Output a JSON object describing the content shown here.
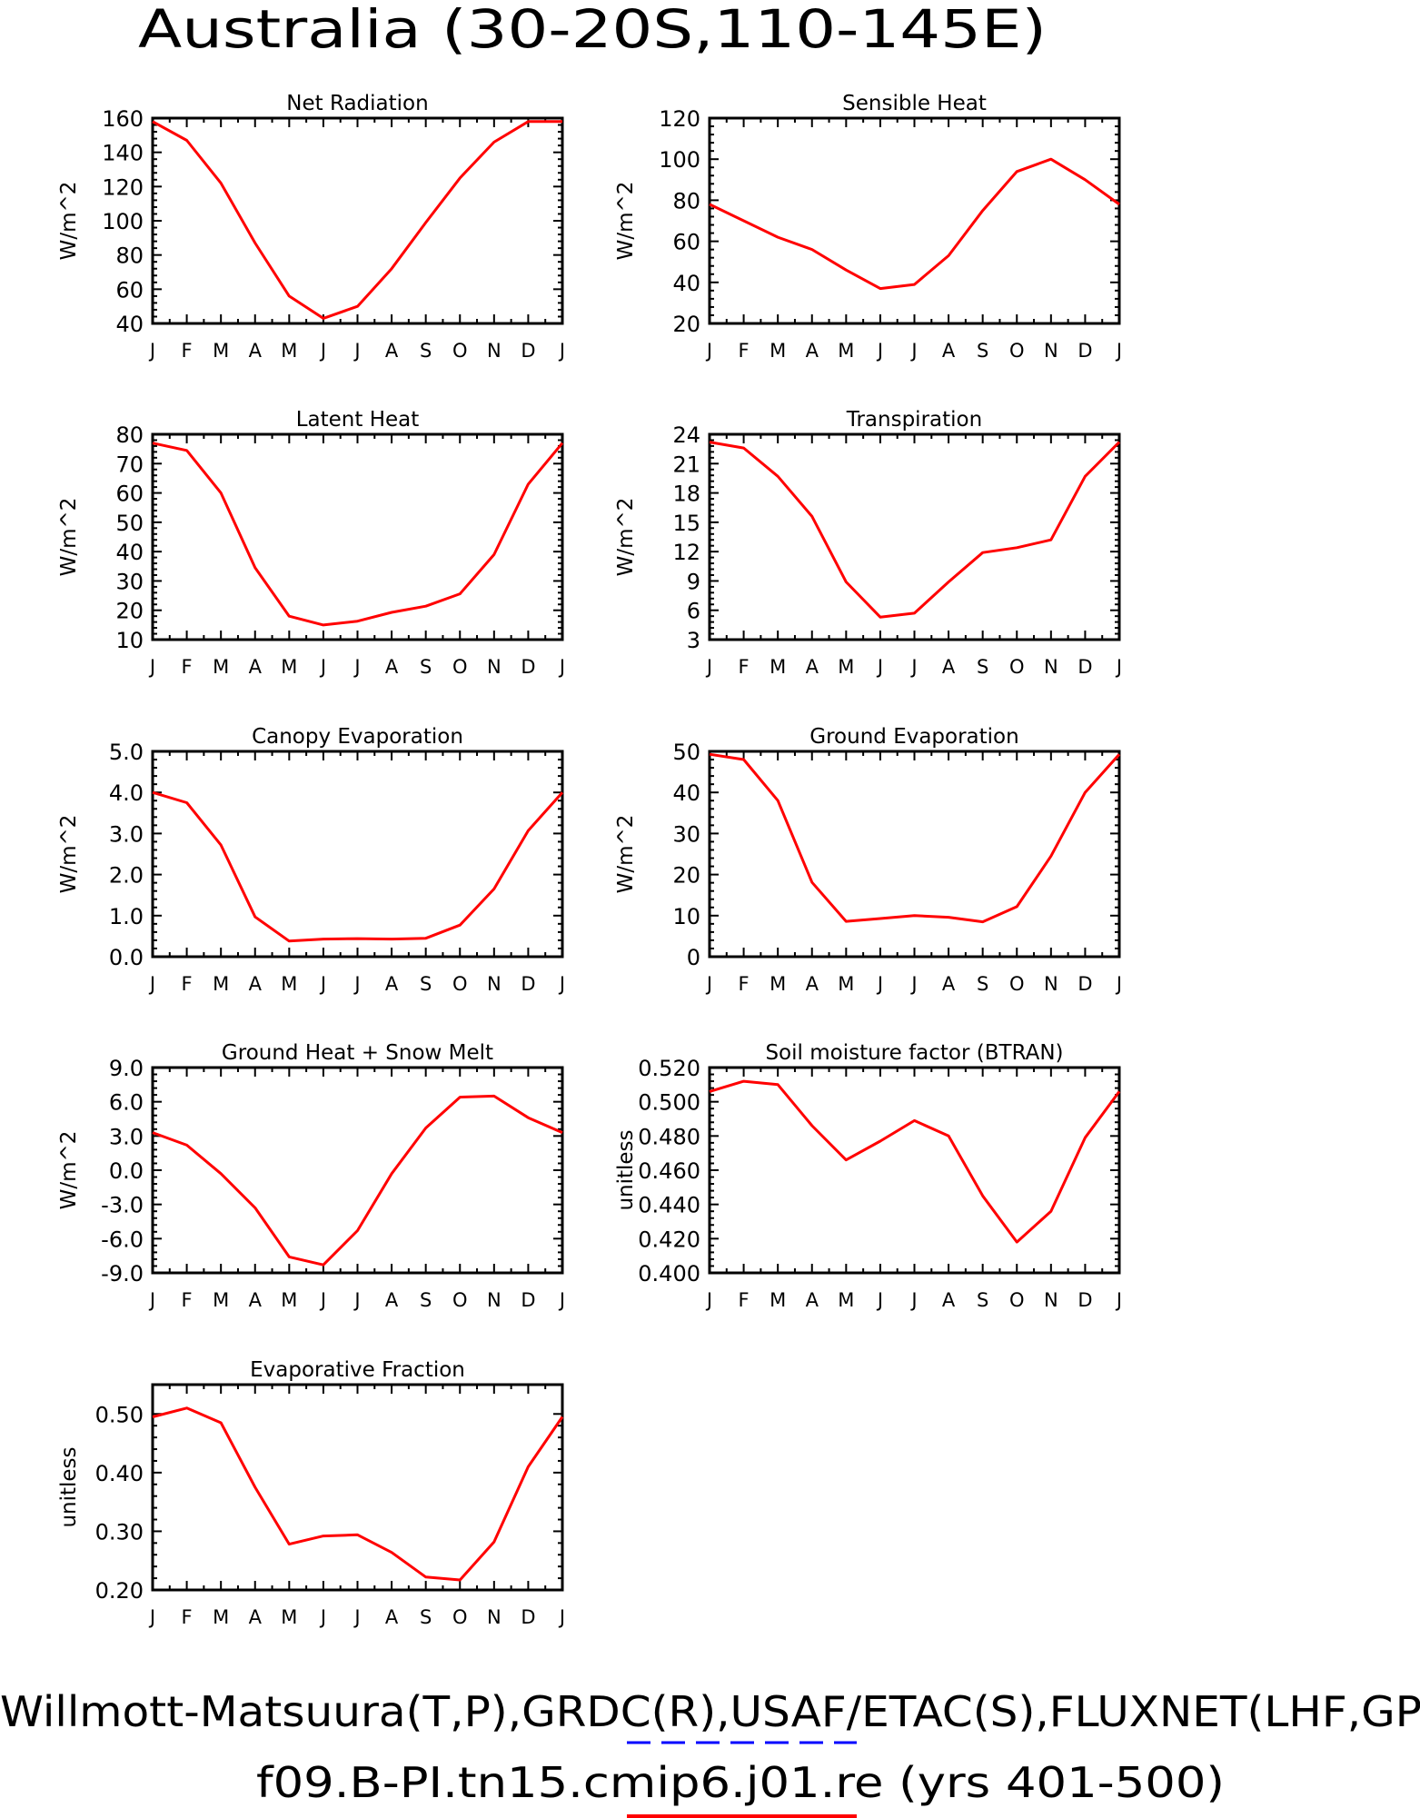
{
  "page": {
    "title": "Australia (30-20S,110-145E)",
    "footer_line1": "Willmott-Matsuura(T,P),GRDC(R),USAF/ETAC(S),FLUXNET(LHF,GP",
    "footer_line2": "f09.B-PI.tn15.cmip6.j01.re (yrs 401-500)"
  },
  "colors": {
    "series": "#ff0000",
    "axis": "#000000",
    "legend_dash": "#0000ff"
  },
  "chart_data": [
    {
      "type": "line",
      "title": "Net Radiation",
      "ylabel": "W/m^2",
      "categories": [
        "J",
        "F",
        "M",
        "A",
        "M",
        "J",
        "J",
        "A",
        "S",
        "O",
        "N",
        "D",
        "J"
      ],
      "ylim": [
        40,
        160
      ],
      "yticks": [
        40,
        60,
        80,
        100,
        120,
        140,
        160
      ],
      "yticklabels": [
        "40",
        "60",
        "80",
        "100",
        "120",
        "140",
        "160"
      ],
      "values": [
        158,
        147,
        122,
        87,
        56,
        43,
        50,
        72,
        99,
        125,
        146,
        158,
        158
      ]
    },
    {
      "type": "line",
      "title": "Sensible Heat",
      "ylabel": "W/m^2",
      "categories": [
        "J",
        "F",
        "M",
        "A",
        "M",
        "J",
        "J",
        "A",
        "S",
        "O",
        "N",
        "D",
        "J"
      ],
      "ylim": [
        20,
        120
      ],
      "yticks": [
        20,
        40,
        60,
        80,
        100,
        120
      ],
      "yticklabels": [
        "20",
        "40",
        "60",
        "80",
        "100",
        "120"
      ],
      "values": [
        78,
        70,
        62,
        56,
        46,
        37,
        39,
        53,
        75,
        94,
        100,
        90,
        78
      ]
    },
    {
      "type": "line",
      "title": "Latent Heat",
      "ylabel": "W/m^2",
      "categories": [
        "J",
        "F",
        "M",
        "A",
        "M",
        "J",
        "J",
        "A",
        "S",
        "O",
        "N",
        "D",
        "J"
      ],
      "ylim": [
        10,
        80
      ],
      "yticks": [
        10,
        20,
        30,
        40,
        50,
        60,
        70,
        80
      ],
      "yticklabels": [
        "10",
        "20",
        "30",
        "40",
        "50",
        "60",
        "70",
        "80"
      ],
      "values": [
        77,
        74.5,
        60,
        34.5,
        18,
        15,
        16.3,
        19.3,
        21.4,
        25.6,
        39,
        63,
        77
      ]
    },
    {
      "type": "line",
      "title": "Transpiration",
      "ylabel": "W/m^2",
      "categories": [
        "J",
        "F",
        "M",
        "A",
        "M",
        "J",
        "J",
        "A",
        "S",
        "O",
        "N",
        "D",
        "J"
      ],
      "ylim": [
        3,
        24
      ],
      "yticks": [
        3,
        6,
        9,
        12,
        15,
        18,
        21,
        24
      ],
      "yticklabels": [
        "3",
        "6",
        "9",
        "12",
        "15",
        "18",
        "21",
        "24"
      ],
      "values": [
        23.2,
        22.6,
        19.7,
        15.6,
        8.9,
        5.3,
        5.7,
        8.9,
        11.9,
        12.4,
        13.2,
        19.7,
        23.2
      ]
    },
    {
      "type": "line",
      "title": "Canopy Evaporation",
      "ylabel": "W/m^2",
      "categories": [
        "J",
        "F",
        "M",
        "A",
        "M",
        "J",
        "J",
        "A",
        "S",
        "O",
        "N",
        "D",
        "J"
      ],
      "ylim": [
        0,
        5
      ],
      "yticks": [
        0,
        1,
        2,
        3,
        4,
        5
      ],
      "yticklabels": [
        "0.0",
        "1.0",
        "2.0",
        "3.0",
        "4.0",
        "5.0"
      ],
      "values": [
        4.0,
        3.75,
        2.72,
        0.97,
        0.38,
        0.43,
        0.44,
        0.43,
        0.45,
        0.77,
        1.65,
        3.07,
        4.0
      ]
    },
    {
      "type": "line",
      "title": "Ground Evaporation",
      "ylabel": "W/m^2",
      "categories": [
        "J",
        "F",
        "M",
        "A",
        "M",
        "J",
        "J",
        "A",
        "S",
        "O",
        "N",
        "D",
        "J"
      ],
      "ylim": [
        0,
        50
      ],
      "yticks": [
        0,
        10,
        20,
        30,
        40,
        50
      ],
      "yticklabels": [
        "0",
        "10",
        "20",
        "30",
        "40",
        "50"
      ],
      "values": [
        49.3,
        48,
        38,
        18.1,
        8.6,
        9.3,
        10,
        9.6,
        8.5,
        12.2,
        24.5,
        40,
        49.3
      ]
    },
    {
      "type": "line",
      "title": "Ground Heat + Snow Melt",
      "ylabel": "W/m^2",
      "categories": [
        "J",
        "F",
        "M",
        "A",
        "M",
        "J",
        "J",
        "A",
        "S",
        "O",
        "N",
        "D",
        "J"
      ],
      "ylim": [
        -9,
        9
      ],
      "yticks": [
        -9,
        -6,
        -3,
        0,
        3,
        6,
        9
      ],
      "yticklabels": [
        "-9.0",
        "-6.0",
        "-3.0",
        "0.0",
        "3.0",
        "6.0",
        "9.0"
      ],
      "values": [
        3.3,
        2.2,
        -0.3,
        -3.3,
        -7.6,
        -8.3,
        -5.3,
        -0.3,
        3.7,
        6.4,
        6.5,
        4.6,
        3.3
      ]
    },
    {
      "type": "line",
      "title": "Soil moisture factor (BTRAN)",
      "ylabel": "unitless",
      "categories": [
        "J",
        "F",
        "M",
        "A",
        "M",
        "J",
        "J",
        "A",
        "S",
        "O",
        "N",
        "D",
        "J"
      ],
      "ylim": [
        0.4,
        0.52
      ],
      "yticks": [
        0.4,
        0.42,
        0.44,
        0.46,
        0.48,
        0.5,
        0.52
      ],
      "yticklabels": [
        "0.400",
        "0.420",
        "0.440",
        "0.460",
        "0.480",
        "0.500",
        "0.520"
      ],
      "values": [
        0.506,
        0.512,
        0.51,
        0.486,
        0.466,
        0.477,
        0.489,
        0.48,
        0.445,
        0.418,
        0.436,
        0.479,
        0.506
      ]
    },
    {
      "type": "line",
      "title": "Evaporative Fraction",
      "ylabel": "unitless",
      "categories": [
        "J",
        "F",
        "M",
        "A",
        "M",
        "J",
        "J",
        "A",
        "S",
        "O",
        "N",
        "D",
        "J"
      ],
      "ylim": [
        0.2,
        0.55
      ],
      "yticks": [
        0.2,
        0.3,
        0.4,
        0.5
      ],
      "yticklabels": [
        "0.20",
        "0.30",
        "0.40",
        "0.50"
      ],
      "values": [
        0.495,
        0.51,
        0.485,
        0.375,
        0.278,
        0.292,
        0.294,
        0.264,
        0.222,
        0.217,
        0.282,
        0.41,
        0.495
      ]
    }
  ]
}
